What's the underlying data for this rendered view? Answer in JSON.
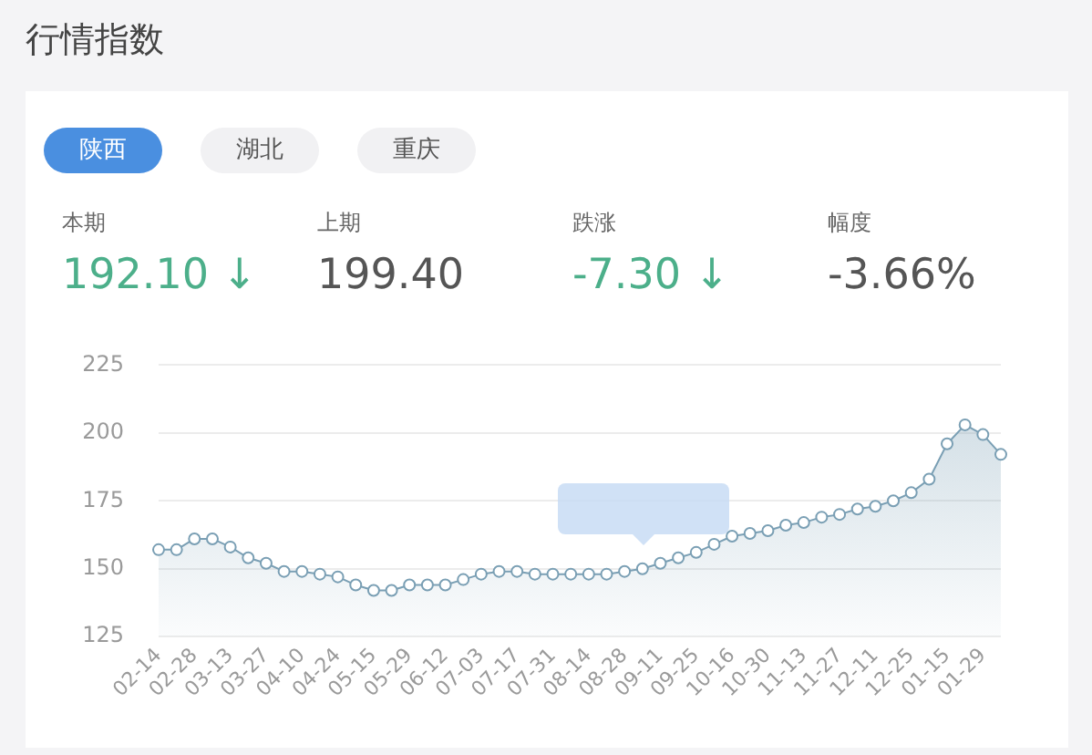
{
  "chart_data": [
    {
      "type": "other",
      "title": "行情指数",
      "annotations": [
        "陕西",
        "湖北",
        "重庆",
        "本期",
        "192.10 ↓",
        "上期",
        "199.40",
        "跌涨",
        "-7.30 ↓",
        "幅度",
        "-3.66%"
      ],
      "colors": [
        "#ffffff",
        "#555555",
        "#555555",
        "#666666",
        "#4caf8a",
        "#666666",
        "#555555",
        "#666666",
        "#4caf8a",
        "#666666",
        "#555555"
      ]
    },
    {
      "type": "area",
      "categories": [
        "02-14",
        null,
        "02-28",
        null,
        "03-13",
        null,
        "03-27",
        null,
        "04-10",
        null,
        "04-24",
        null,
        "05-15",
        null,
        "05-29",
        null,
        "06-12",
        null,
        "07-03",
        null,
        "07-17",
        null,
        "07-31",
        null,
        "08-14",
        null,
        "08-28",
        null,
        "09-11",
        null,
        "09-25",
        null,
        "10-16",
        null,
        "10-30",
        null,
        "11-13",
        null,
        "11-27",
        null,
        "12-11",
        null,
        "12-25",
        null,
        "01-15",
        null,
        "01-29",
        null
      ],
      "series": [
        {
          "color": "#7a9fb4",
          "values": [
            157,
            157,
            161,
            161,
            158,
            154,
            152,
            149,
            149,
            148,
            147,
            144,
            142,
            142,
            144,
            144,
            144,
            146,
            148,
            149,
            149,
            148,
            148,
            148,
            148,
            148,
            149,
            150,
            152,
            154,
            156,
            159,
            162,
            163,
            164,
            166,
            167,
            169,
            170,
            172,
            173,
            175,
            178,
            183,
            196,
            203,
            199.4,
            192.1
          ]
        }
      ],
      "ylim": [
        125,
        225
      ],
      "yticks": [
        125,
        150,
        175,
        200,
        225
      ],
      "grid": "y",
      "marker": "circle"
    }
  ]
}
